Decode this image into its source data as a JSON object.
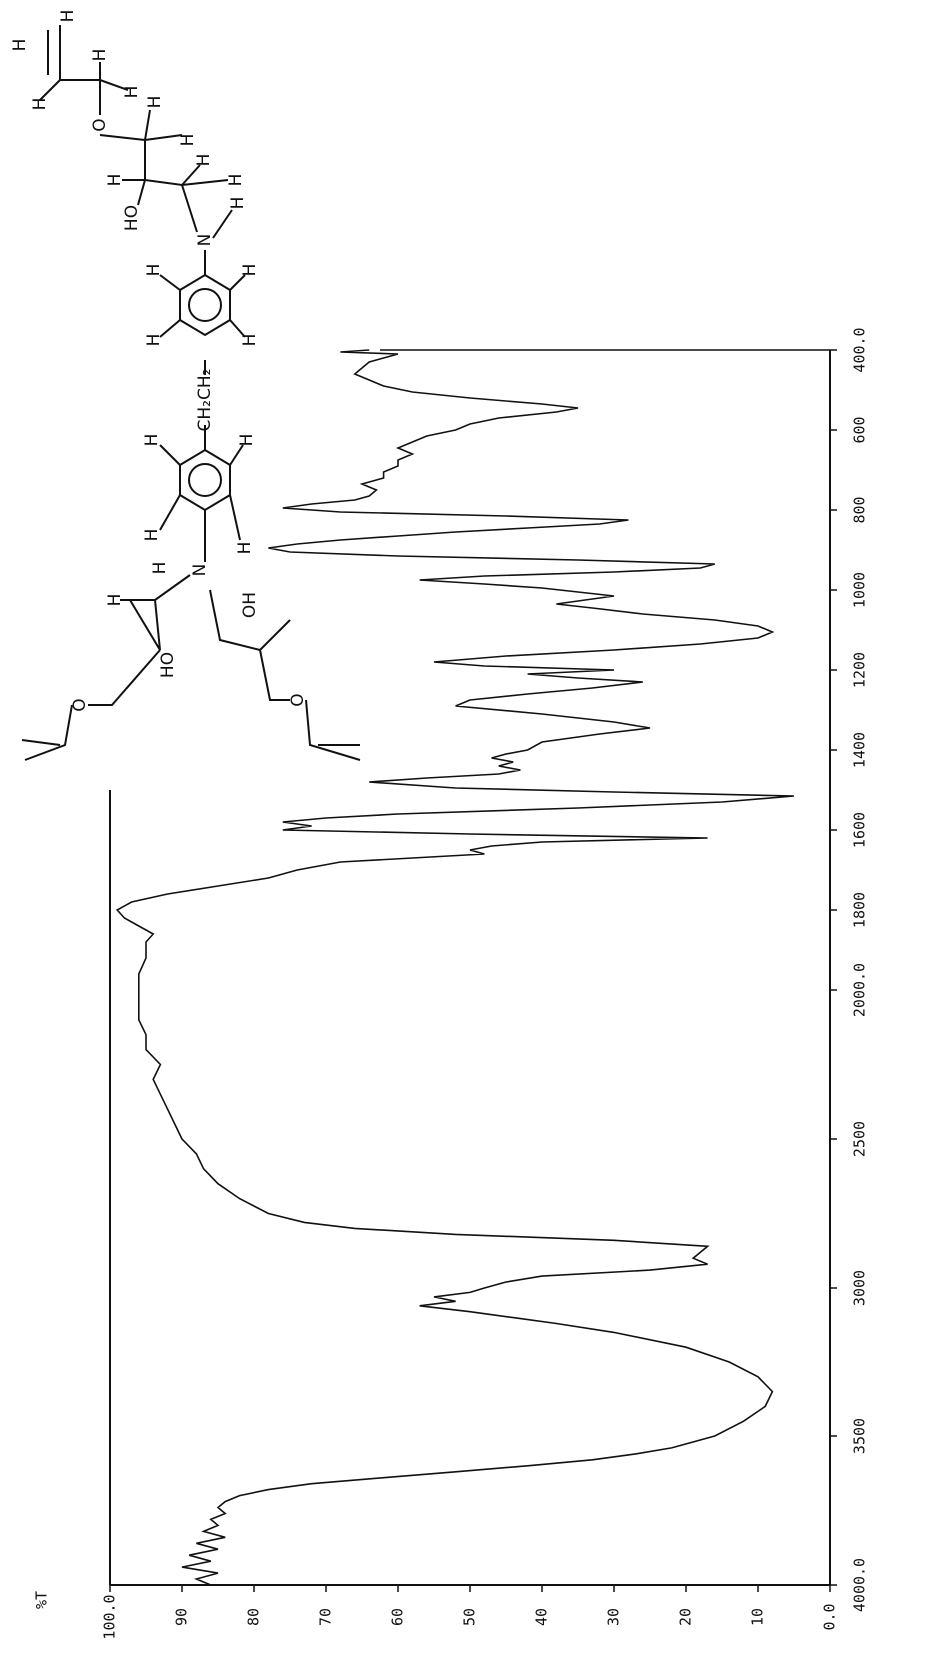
{
  "chart_data": {
    "type": "line",
    "y_label": "%T",
    "x": [
      4000,
      3980,
      3960,
      3940,
      3920,
      3900,
      3880,
      3860,
      3840,
      3820,
      3800,
      3780,
      3760,
      3740,
      3720,
      3700,
      3680,
      3660,
      3640,
      3620,
      3600,
      3580,
      3560,
      3540,
      3500,
      3450,
      3400,
      3350,
      3300,
      3250,
      3200,
      3150,
      3120,
      3100,
      3080,
      3060,
      3045,
      3030,
      3015,
      3000,
      2980,
      2960,
      2940,
      2920,
      2900,
      2880,
      2860,
      2840,
      2820,
      2800,
      2780,
      2750,
      2700,
      2650,
      2600,
      2550,
      2500,
      2450,
      2400,
      2350,
      2300,
      2250,
      2200,
      2150,
      2100,
      2050,
      2000,
      1960,
      1920,
      1880,
      1860,
      1840,
      1820,
      1800,
      1780,
      1760,
      1740,
      1720,
      1700,
      1680,
      1660,
      1650,
      1640,
      1630,
      1620,
      1610,
      1600,
      1590,
      1580,
      1570,
      1560,
      1545,
      1530,
      1515,
      1505,
      1495,
      1480,
      1470,
      1460,
      1450,
      1440,
      1430,
      1420,
      1410,
      1400,
      1380,
      1360,
      1345,
      1330,
      1310,
      1290,
      1275,
      1260,
      1245,
      1230,
      1220,
      1210,
      1200,
      1190,
      1180,
      1165,
      1150,
      1135,
      1120,
      1105,
      1090,
      1075,
      1060,
      1045,
      1035,
      1025,
      1015,
      1005,
      995,
      985,
      975,
      965,
      955,
      945,
      935,
      925,
      915,
      905,
      895,
      885,
      875,
      865,
      855,
      845,
      835,
      825,
      815,
      805,
      795,
      785,
      775,
      765,
      750,
      735,
      720,
      705,
      690,
      675,
      660,
      645,
      630,
      615,
      600,
      585,
      570,
      555,
      545,
      535,
      520,
      505,
      490,
      475,
      460,
      445,
      430,
      420,
      410,
      405,
      400
    ],
    "values": [
      86,
      88,
      85,
      90,
      86,
      89,
      85,
      88,
      84,
      87,
      85,
      86,
      84,
      85,
      84,
      82,
      78,
      72,
      62,
      52,
      42,
      33,
      27,
      22,
      16,
      12,
      9,
      8,
      10,
      14,
      20,
      30,
      38,
      44,
      50,
      57,
      52,
      55,
      50,
      48,
      45,
      40,
      25,
      17,
      19,
      18,
      17,
      30,
      52,
      66,
      73,
      78,
      82,
      85,
      87,
      88,
      90,
      91,
      92,
      93,
      94,
      93,
      95,
      95,
      96,
      96,
      96,
      96,
      95,
      95,
      94,
      96,
      98,
      99,
      97,
      92,
      85,
      78,
      74,
      68,
      48,
      50,
      47,
      40,
      17,
      50,
      76,
      72,
      76,
      70,
      60,
      35,
      15,
      5,
      30,
      52,
      64,
      56,
      46,
      43,
      46,
      44,
      47,
      45,
      42,
      40,
      32,
      25,
      30,
      40,
      52,
      50,
      42,
      33,
      26,
      35,
      42,
      30,
      48,
      55,
      45,
      30,
      18,
      10,
      8,
      10,
      16,
      26,
      33,
      38,
      34,
      30,
      35,
      40,
      48,
      57,
      48,
      30,
      18,
      16,
      35,
      60,
      75,
      78,
      74,
      68,
      60,
      52,
      42,
      32,
      28,
      45,
      68,
      76,
      72,
      66,
      64,
      63,
      65,
      62,
      62,
      60,
      60,
      58,
      60,
      58,
      56,
      52,
      50,
      46,
      38,
      35,
      40,
      50,
      58,
      62,
      64,
      66,
      65,
      64,
      62,
      60,
      68,
      64
    ],
    "color": "#111111",
    "xlim": [
      4000,
      400
    ],
    "xticks": [
      {
        "value": 400,
        "label": "400.0"
      },
      600,
      800,
      1000,
      1200,
      1400,
      1600,
      1800,
      {
        "value": 2000,
        "label": "2000.0"
      },
      2500,
      3000,
      3500,
      {
        "value": 4000,
        "label": "4000.0"
      }
    ],
    "ylim": [
      0,
      100
    ],
    "yticks": [
      {
        "value": 0,
        "label": "0.0"
      },
      10,
      20,
      30,
      40,
      50,
      60,
      70,
      80,
      90,
      {
        "value": 100,
        "label": "100.0"
      }
    ],
    "structure_labels": [
      "H",
      "H",
      "H",
      "H",
      "H",
      "O",
      "H",
      "H",
      "H",
      "HO",
      "H",
      "H",
      "N",
      "H",
      "H",
      "H",
      "H",
      "H",
      "CH₂CH₂",
      "H",
      "H",
      "H",
      "H",
      "N",
      "H",
      "H",
      "HO",
      "O",
      "OH",
      "O"
    ]
  }
}
